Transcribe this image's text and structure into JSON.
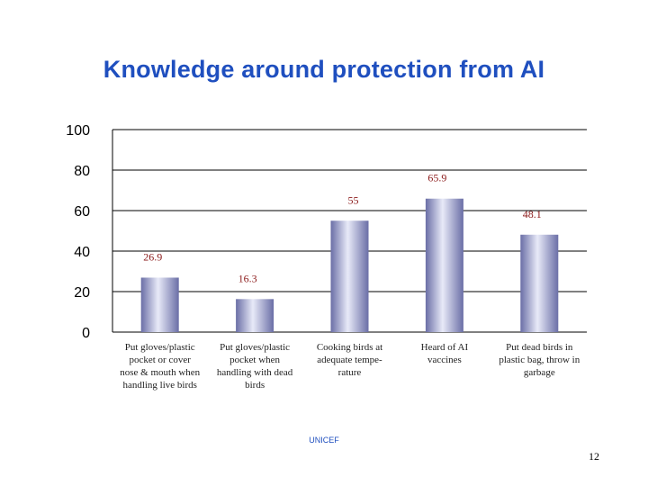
{
  "slide": {
    "title": "Knowledge around protection from AI",
    "footer": "UNICEF",
    "page_number": "12"
  },
  "chart_data": {
    "type": "bar",
    "title": "",
    "xlabel": "",
    "ylabel": "",
    "ylim": [
      0,
      100
    ],
    "yticks": [
      0,
      20,
      40,
      60,
      80,
      100
    ],
    "grid": true,
    "categories": [
      [
        "Put gloves/plastic",
        "pocket or cover",
        "nose & mouth when",
        "handling live birds"
      ],
      [
        "Put gloves/plastic",
        "pocket when",
        "handling with dead",
        "birds"
      ],
      [
        "Cooking birds at",
        "adequate tempe-",
        "rature"
      ],
      [
        "Heard of AI",
        "vaccines"
      ],
      [
        "Put dead birds in",
        "plastic bag, throw in",
        "garbage"
      ]
    ],
    "values": [
      26.9,
      16.3,
      55,
      65.9,
      48.1
    ],
    "data_labels": [
      "26.9",
      "16.3",
      "55",
      "65.9",
      "48.1"
    ],
    "colors": {
      "bar_light": "#e6e8f6",
      "bar_dark": "#7478ac",
      "label": "#8b1a1a",
      "grid": "#000000"
    }
  }
}
